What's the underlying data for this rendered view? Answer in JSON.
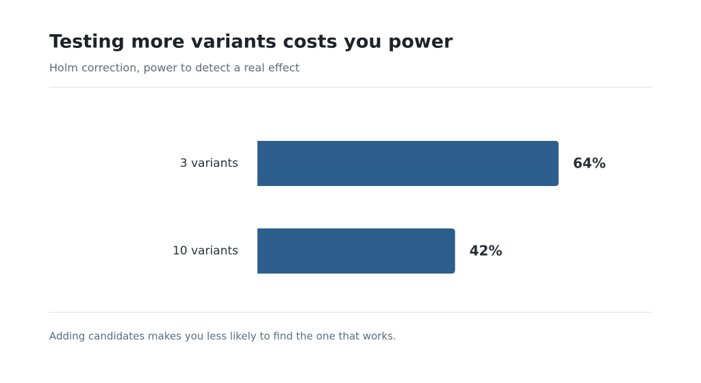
{
  "chart_data": {
    "type": "bar",
    "orientation": "horizontal",
    "title": "Testing more variants costs you power",
    "subtitle": "Holm correction, power to detect a real effect",
    "categories": [
      "3 variants",
      "10 variants"
    ],
    "values": [
      64,
      42
    ],
    "value_labels": [
      "64%",
      "42%"
    ],
    "color": "#2d5f8e",
    "annotation": "Adding candidates makes you less likely to find the one that works."
  }
}
